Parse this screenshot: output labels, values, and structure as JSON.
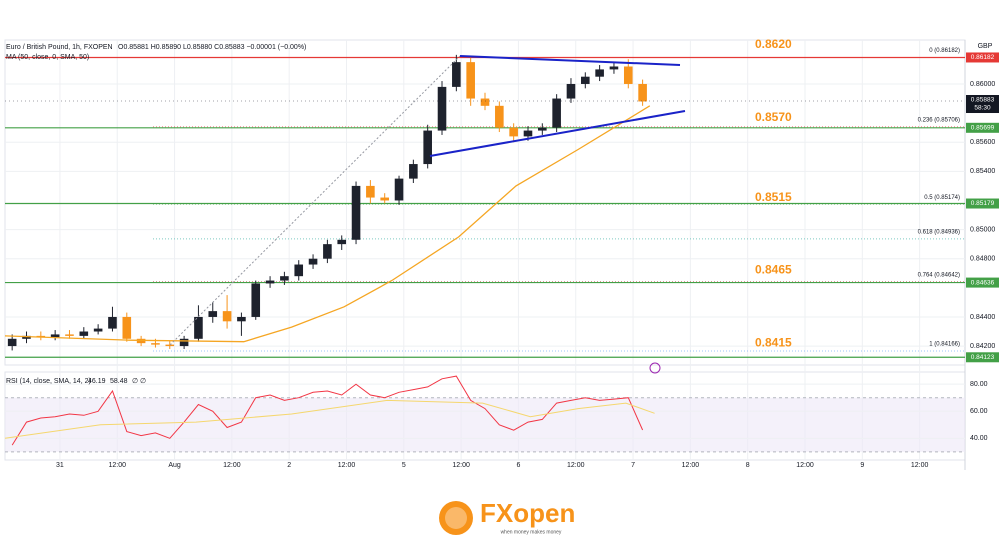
{
  "chart_data": [
    {
      "type": "candlestick",
      "title": "Euro / British Pound, 1h, FXOPEN",
      "ohlc_text": "O0.85881 H0.85890 L0.85880 C0.85883 −0.00001 (−0.00%)",
      "ma_label": "MA (50, close, 0, SMA, 50)",
      "currency": "GBP",
      "up_color": "#1e222d",
      "down_color": "#f7931a",
      "x": [
        1.5,
        4.5,
        7.5,
        10.5,
        13.5,
        16.5,
        19.5,
        22.5,
        25.5,
        28.5,
        31.5,
        34.5,
        37.5,
        40.5,
        43.5,
        46.5,
        49.5,
        52.5,
        55.5,
        58.5,
        61.5,
        64.5,
        67.5,
        70.5,
        73.5,
        76.5,
        79.5,
        82.5,
        85.5,
        88.5,
        91.5,
        94.5,
        97.5,
        100.5,
        103.5,
        106.5,
        109.5,
        112.5,
        115.5,
        118.5,
        121.5,
        124.5,
        127.5,
        130.5,
        133.5
      ],
      "open": [
        0.842,
        0.8425,
        0.8427,
        0.8426,
        0.8428,
        0.8427,
        0.843,
        0.8432,
        0.844,
        0.8425,
        0.8422,
        0.8421,
        0.842,
        0.8425,
        0.844,
        0.8444,
        0.8437,
        0.844,
        0.8463,
        0.8465,
        0.8468,
        0.8476,
        0.848,
        0.849,
        0.8493,
        0.853,
        0.8522,
        0.852,
        0.8535,
        0.8545,
        0.8568,
        0.8598,
        0.8615,
        0.859,
        0.8585,
        0.857,
        0.8564,
        0.8568,
        0.857,
        0.859,
        0.86,
        0.8605,
        0.861,
        0.8612,
        0.86
      ],
      "high": [
        0.8428,
        0.843,
        0.843,
        0.8431,
        0.8431,
        0.8433,
        0.8435,
        0.8447,
        0.8443,
        0.8427,
        0.8425,
        0.8424,
        0.8427,
        0.8448,
        0.845,
        0.8455,
        0.8443,
        0.8465,
        0.8468,
        0.8471,
        0.8479,
        0.8483,
        0.8493,
        0.8496,
        0.8533,
        0.8534,
        0.8525,
        0.8537,
        0.8548,
        0.8572,
        0.8602,
        0.862,
        0.8618,
        0.8594,
        0.8588,
        0.8573,
        0.8571,
        0.8573,
        0.8593,
        0.8604,
        0.8608,
        0.8613,
        0.8615,
        0.8617,
        0.8603
      ],
      "low": [
        0.8417,
        0.8422,
        0.8424,
        0.8424,
        0.8425,
        0.8425,
        0.8428,
        0.843,
        0.8423,
        0.842,
        0.8419,
        0.8418,
        0.8418,
        0.8423,
        0.8436,
        0.8432,
        0.8427,
        0.8438,
        0.846,
        0.8462,
        0.8465,
        0.8473,
        0.8477,
        0.8486,
        0.849,
        0.8518,
        0.8518,
        0.8517,
        0.8532,
        0.8542,
        0.8565,
        0.8595,
        0.8585,
        0.8582,
        0.8567,
        0.856,
        0.8561,
        0.8565,
        0.8567,
        0.8587,
        0.8597,
        0.8602,
        0.8607,
        0.8597,
        0.8585
      ],
      "close": [
        0.8425,
        0.8427,
        0.8426,
        0.8428,
        0.8427,
        0.843,
        0.8432,
        0.844,
        0.8425,
        0.8422,
        0.8421,
        0.842,
        0.8425,
        0.844,
        0.8444,
        0.8437,
        0.844,
        0.8463,
        0.8465,
        0.8468,
        0.8476,
        0.848,
        0.849,
        0.8493,
        0.853,
        0.8522,
        0.852,
        0.8535,
        0.8545,
        0.8568,
        0.8598,
        0.8615,
        0.859,
        0.8585,
        0.857,
        0.8564,
        0.8568,
        0.857,
        0.859,
        0.86,
        0.8605,
        0.861,
        0.8612,
        0.86,
        0.8588
      ],
      "ma": {
        "color": "#f5a623",
        "x": [
          0,
          26,
          50,
          60,
          71,
          81,
          95,
          107,
          120,
          130,
          135
        ],
        "values": [
          0.8427,
          0.8424,
          0.8423,
          0.8433,
          0.8447,
          0.8465,
          0.8495,
          0.853,
          0.8555,
          0.8575,
          0.8585
        ]
      },
      "xlim": [
        0,
        201
      ],
      "xticks": [
        {
          "value": 11.5,
          "label": "31"
        },
        {
          "value": 23.5,
          "label": "12:00"
        },
        {
          "value": 35.5,
          "label": "Aug"
        },
        {
          "value": 47.5,
          "label": "12:00"
        },
        {
          "value": 59.5,
          "label": "2"
        },
        {
          "value": 71.5,
          "label": "12:00"
        },
        {
          "value": 83.5,
          "label": "5"
        },
        {
          "value": 95.5,
          "label": "12:00"
        },
        {
          "value": 107.5,
          "label": "6"
        },
        {
          "value": 119.5,
          "label": "12:00"
        },
        {
          "value": 131.5,
          "label": "7"
        },
        {
          "value": 143.5,
          "label": "12:00"
        },
        {
          "value": 155.5,
          "label": "8"
        },
        {
          "value": 167.5,
          "label": "12:00"
        },
        {
          "value": 179.5,
          "label": "9"
        },
        {
          "value": 191.5,
          "label": "12:00"
        }
      ],
      "ylim": [
        0.8407,
        0.86302
      ],
      "yticks": [
        {
          "value": 0.86,
          "label": "0.86000"
        },
        {
          "value": 0.856,
          "label": "0.85600"
        },
        {
          "value": 0.854,
          "label": "0.85400"
        },
        {
          "value": 0.85,
          "label": "0.85000"
        },
        {
          "value": 0.848,
          "label": "0.84800"
        },
        {
          "value": 0.844,
          "label": "0.84400"
        },
        {
          "value": 0.842,
          "label": "0.84200"
        }
      ],
      "grid": true,
      "levels": [
        {
          "value": 0.86182,
          "color": "#e53935"
        },
        {
          "value": 0.85699,
          "color": "#43a047"
        },
        {
          "value": 0.85179,
          "color": "#43a047"
        },
        {
          "value": 0.84636,
          "color": "#43a047"
        },
        {
          "value": 0.84123,
          "color": "#43a047"
        }
      ],
      "current_price": {
        "value": 0.85883,
        "countdown": "58:30",
        "color": "#131722"
      },
      "annotations": [
        {
          "value": 0.862,
          "label": "0.8620"
        },
        {
          "value": 0.857,
          "label": "0.8570"
        },
        {
          "value": 0.8515,
          "label": "0.8515"
        },
        {
          "value": 0.8465,
          "label": "0.8465"
        },
        {
          "value": 0.8415,
          "label": "0.8415"
        }
      ],
      "annotation_color": "#f7931a",
      "fib": [
        {
          "value": 0.86182,
          "label": "0 (0.86182)",
          "color": "#787b86"
        },
        {
          "value": 0.85706,
          "label": "0.236 (0.85706)",
          "color": "#f23645"
        },
        {
          "value": 0.85174,
          "label": "0.5 (0.85174)",
          "color": "#4caf50"
        },
        {
          "value": 0.84936,
          "label": "0.618 (0.84936)",
          "color": "#26a69a"
        },
        {
          "value": 0.84642,
          "label": "0.764 (0.84642)",
          "color": "#b71c1c"
        },
        {
          "value": 0.84166,
          "label": "1 (0.84166)",
          "color": "#5b9cf6"
        }
      ]
    },
    {
      "type": "line",
      "title": "RSI (14, close, SMA, 14, 2)",
      "rsi_value": 46.19,
      "sma_value": 58.48,
      "extra": "∅ ∅",
      "x": [
        1.5,
        4.5,
        7.5,
        10.5,
        13.5,
        16.5,
        19.5,
        22.5,
        25.5,
        28.5,
        31.5,
        34.5,
        37.5,
        40.5,
        43.5,
        46.5,
        49.5,
        52.5,
        55.5,
        58.5,
        61.5,
        64.5,
        67.5,
        70.5,
        73.5,
        76.5,
        79.5,
        82.5,
        85.5,
        88.5,
        91.5,
        94.5,
        97.5,
        100.5,
        103.5,
        106.5,
        109.5,
        112.5,
        115.5,
        118.5,
        121.5,
        124.5,
        127.5,
        130.5,
        133.5
      ],
      "series": [
        {
          "color": "#f23645",
          "values": [
            35,
            52,
            55,
            56,
            58,
            57,
            60,
            75,
            45,
            42,
            44,
            40,
            52,
            65,
            60,
            48,
            52,
            70,
            72,
            68,
            70,
            74,
            75,
            72,
            80,
            72,
            70,
            74,
            76,
            78,
            84,
            86,
            68,
            62,
            50,
            46,
            52,
            54,
            66,
            68,
            70,
            68,
            69,
            70,
            46.19
          ]
        },
        {
          "color": "#f5d76e",
          "x": [
            0,
            20,
            40,
            60,
            80,
            100,
            110,
            120,
            130,
            136
          ],
          "values": [
            40,
            50,
            52,
            58,
            68,
            66,
            56,
            62,
            66,
            58.48
          ]
        }
      ],
      "band": [
        30,
        70
      ],
      "band_color": "#ede7f6",
      "xlim": [
        0,
        201
      ],
      "ylim": [
        24,
        89
      ],
      "yticks": [
        {
          "value": 80,
          "label": "80.00"
        },
        {
          "value": 60,
          "label": "60.00"
        },
        {
          "value": 40,
          "label": "40.00"
        }
      ]
    }
  ],
  "logo": {
    "name": "FXopen",
    "tagline": "when money makes money"
  }
}
